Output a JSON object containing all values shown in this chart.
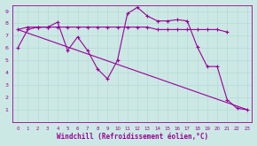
{
  "bg_color": "#cce8e4",
  "grid_color": "#aacccc",
  "line_color": "#990099",
  "xlabel": "Windchill (Refroidissement éolien,°C)",
  "xlim": [
    -0.5,
    23.5
  ],
  "ylim": [
    0,
    9.5
  ],
  "yticks": [
    1,
    2,
    3,
    4,
    5,
    6,
    7,
    8,
    9
  ],
  "xticks": [
    0,
    1,
    2,
    3,
    4,
    5,
    6,
    7,
    8,
    9,
    10,
    11,
    12,
    13,
    14,
    15,
    16,
    17,
    18,
    19,
    20,
    21,
    22,
    23
  ],
  "line1_x": [
    0,
    1,
    2,
    3,
    4,
    5,
    6,
    7,
    8,
    9,
    10,
    11,
    12,
    13,
    14,
    15,
    16,
    17,
    18,
    19,
    20,
    21,
    22,
    23
  ],
  "line1_y": [
    6.0,
    7.5,
    7.7,
    7.7,
    8.1,
    5.8,
    6.9,
    5.8,
    4.3,
    3.5,
    5.0,
    8.8,
    9.3,
    8.6,
    8.2,
    8.2,
    8.3,
    8.2,
    6.1,
    4.5,
    4.5,
    1.8,
    1.1,
    1.0
  ],
  "line2_x": [
    0,
    1,
    2,
    3,
    4,
    5,
    6,
    7,
    8,
    9,
    10,
    11,
    12,
    13,
    14,
    15,
    16,
    17,
    18,
    19,
    20,
    21
  ],
  "line2_y": [
    7.5,
    7.7,
    7.7,
    7.7,
    7.7,
    7.7,
    7.7,
    7.7,
    7.7,
    7.7,
    7.7,
    7.7,
    7.7,
    7.7,
    7.5,
    7.5,
    7.5,
    7.5,
    7.5,
    7.5,
    7.5,
    7.3
  ],
  "line3_x": [
    0,
    23
  ],
  "line3_y": [
    7.5,
    1.0
  ],
  "marker": "+",
  "markersize": 3.5,
  "linewidth": 0.8
}
